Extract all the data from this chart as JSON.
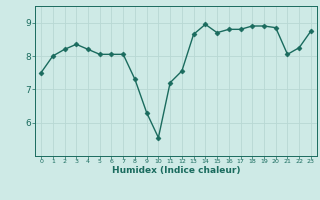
{
  "x": [
    0,
    1,
    2,
    3,
    4,
    5,
    6,
    7,
    8,
    9,
    10,
    11,
    12,
    13,
    14,
    15,
    16,
    17,
    18,
    19,
    20,
    21,
    22,
    23
  ],
  "y": [
    7.5,
    8.0,
    8.2,
    8.35,
    8.2,
    8.05,
    8.05,
    8.05,
    7.3,
    6.3,
    5.55,
    7.2,
    7.55,
    8.65,
    8.95,
    8.7,
    8.8,
    8.8,
    8.9,
    8.9,
    8.85,
    8.05,
    8.25,
    8.75
  ],
  "xlabel": "Humidex (Indice chaleur)",
  "xlim": [
    -0.5,
    23.5
  ],
  "ylim": [
    5.0,
    9.5
  ],
  "yticks": [
    6,
    7,
    8,
    9
  ],
  "xticks": [
    0,
    1,
    2,
    3,
    4,
    5,
    6,
    7,
    8,
    9,
    10,
    11,
    12,
    13,
    14,
    15,
    16,
    17,
    18,
    19,
    20,
    21,
    22,
    23
  ],
  "bg_color": "#ceeae6",
  "line_color": "#1a6b5e",
  "grid_color": "#b8d8d4",
  "markersize": 2.5,
  "linewidth": 1.0
}
